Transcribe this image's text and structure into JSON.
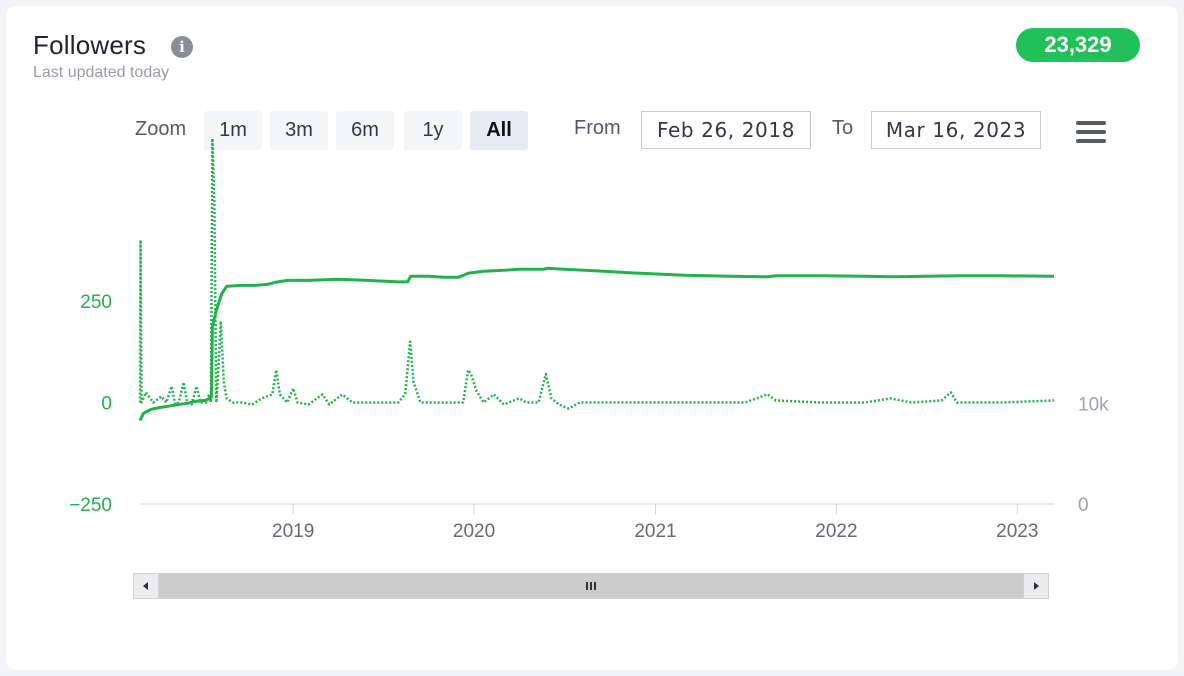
{
  "header": {
    "title": "Followers",
    "subtitle": "Last updated today",
    "badge": "23,329"
  },
  "toolbar": {
    "zoom_label": "Zoom",
    "zoom_buttons": [
      {
        "label": "1m",
        "active": false
      },
      {
        "label": "3m",
        "active": false
      },
      {
        "label": "6m",
        "active": false
      },
      {
        "label": "1y",
        "active": false
      },
      {
        "label": "All",
        "active": true
      }
    ],
    "from_label": "From",
    "from_value": "Feb 26, 2018",
    "to_label": "To",
    "to_value": "Mar 16, 2023"
  },
  "colors": {
    "series": "#22b24c",
    "axis_text": "#666a73",
    "right_axis_text": "#a0a4ab",
    "axis_line": "#ccd6eb"
  },
  "icons": {
    "info": "info-icon",
    "menu": "hamburger-menu-icon",
    "scroll_left": "arrow-left-icon",
    "scroll_right": "arrow-right-icon",
    "scroll_grip": "grip-icon"
  },
  "chart_data": {
    "type": "line",
    "x_range": [
      "2018-02-26",
      "2023-03-16"
    ],
    "x_ticks": [
      "2019",
      "2020",
      "2021",
      "2022",
      "2023"
    ],
    "left_axis": {
      "ticks": [
        "250",
        "0",
        "−250"
      ],
      "values": [
        250,
        0,
        -250
      ],
      "range": [
        -250,
        420
      ]
    },
    "right_axis": {
      "ticks": [
        "10k",
        "0"
      ],
      "values": [
        10000,
        0
      ],
      "range": [
        0,
        27000
      ]
    },
    "legend": "none",
    "grid": false,
    "series": [
      {
        "axis": "right",
        "style": "solid",
        "points": [
          [
            "2018-02-26",
            8300
          ],
          [
            "2018-03-05",
            9000
          ],
          [
            "2018-03-20",
            9400
          ],
          [
            "2018-04-10",
            9600
          ],
          [
            "2018-05-05",
            9800
          ],
          [
            "2018-06-01",
            10000
          ],
          [
            "2018-06-20",
            10200
          ],
          [
            "2018-07-10",
            10300
          ],
          [
            "2018-07-20",
            10600
          ],
          [
            "2018-07-22",
            17600
          ],
          [
            "2018-07-30",
            19200
          ],
          [
            "2018-08-10",
            20900
          ],
          [
            "2018-08-20",
            21600
          ],
          [
            "2018-09-15",
            21700
          ],
          [
            "2018-10-15",
            21700
          ],
          [
            "2018-11-10",
            21800
          ],
          [
            "2018-11-25",
            22000
          ],
          [
            "2018-12-20",
            22200
          ],
          [
            "2019-02-01",
            22200
          ],
          [
            "2019-04-01",
            22300
          ],
          [
            "2019-06-01",
            22200
          ],
          [
            "2019-08-01",
            22050
          ],
          [
            "2019-08-20",
            22050
          ],
          [
            "2019-08-26",
            22600
          ],
          [
            "2019-10-01",
            22600
          ],
          [
            "2019-11-01",
            22500
          ],
          [
            "2019-12-01",
            22500
          ],
          [
            "2019-12-20",
            22900
          ],
          [
            "2020-01-20",
            23100
          ],
          [
            "2020-03-01",
            23200
          ],
          [
            "2020-04-01",
            23300
          ],
          [
            "2020-05-20",
            23300
          ],
          [
            "2020-05-28",
            23400
          ],
          [
            "2020-07-01",
            23300
          ],
          [
            "2020-09-01",
            23150
          ],
          [
            "2020-12-01",
            22900
          ],
          [
            "2021-03-01",
            22700
          ],
          [
            "2021-06-01",
            22600
          ],
          [
            "2021-08-15",
            22550
          ],
          [
            "2021-09-01",
            22650
          ],
          [
            "2021-12-01",
            22650
          ],
          [
            "2022-03-01",
            22600
          ],
          [
            "2022-05-01",
            22550
          ],
          [
            "2022-07-01",
            22600
          ],
          [
            "2022-09-01",
            22650
          ],
          [
            "2022-12-01",
            22650
          ],
          [
            "2023-03-16",
            22600
          ]
        ]
      },
      {
        "axis": "left",
        "style": "dotted",
        "points": [
          [
            "2018-02-26",
            0
          ],
          [
            "2018-02-27",
            400
          ],
          [
            "2018-03-01",
            0
          ],
          [
            "2018-03-10",
            25
          ],
          [
            "2018-03-25",
            0
          ],
          [
            "2018-04-10",
            15
          ],
          [
            "2018-04-20",
            0
          ],
          [
            "2018-05-01",
            40
          ],
          [
            "2018-05-08",
            -5
          ],
          [
            "2018-05-15",
            0
          ],
          [
            "2018-05-25",
            50
          ],
          [
            "2018-06-01",
            0
          ],
          [
            "2018-06-10",
            -5
          ],
          [
            "2018-06-20",
            40
          ],
          [
            "2018-06-28",
            0
          ],
          [
            "2018-07-10",
            0
          ],
          [
            "2018-07-15",
            20
          ],
          [
            "2018-07-19",
            0
          ],
          [
            "2018-07-22",
            650
          ],
          [
            "2018-07-26",
            500
          ],
          [
            "2018-07-30",
            0
          ],
          [
            "2018-08-03",
            80
          ],
          [
            "2018-08-08",
            200
          ],
          [
            "2018-08-14",
            50
          ],
          [
            "2018-08-20",
            10
          ],
          [
            "2018-09-01",
            0
          ],
          [
            "2018-09-20",
            0
          ],
          [
            "2018-10-10",
            -5
          ],
          [
            "2018-10-30",
            10
          ],
          [
            "2018-11-20",
            20
          ],
          [
            "2018-11-28",
            80
          ],
          [
            "2018-12-05",
            20
          ],
          [
            "2018-12-20",
            0
          ],
          [
            "2019-01-01",
            35
          ],
          [
            "2019-01-10",
            0
          ],
          [
            "2019-02-01",
            -5
          ],
          [
            "2019-03-01",
            20
          ],
          [
            "2019-03-15",
            -5
          ],
          [
            "2019-04-10",
            20
          ],
          [
            "2019-05-01",
            0
          ],
          [
            "2019-06-01",
            0
          ],
          [
            "2019-07-01",
            0
          ],
          [
            "2019-08-01",
            0
          ],
          [
            "2019-08-15",
            20
          ],
          [
            "2019-08-25",
            150
          ],
          [
            "2019-09-01",
            50
          ],
          [
            "2019-09-15",
            0
          ],
          [
            "2019-10-15",
            0
          ],
          [
            "2019-11-15",
            0
          ],
          [
            "2019-12-10",
            0
          ],
          [
            "2019-12-20",
            80
          ],
          [
            "2019-12-26",
            70
          ],
          [
            "2020-01-05",
            30
          ],
          [
            "2020-01-20",
            0
          ],
          [
            "2020-02-10",
            20
          ],
          [
            "2020-03-01",
            -5
          ],
          [
            "2020-04-01",
            10
          ],
          [
            "2020-04-15",
            0
          ],
          [
            "2020-05-10",
            0
          ],
          [
            "2020-05-25",
            70
          ],
          [
            "2020-06-05",
            10
          ],
          [
            "2020-06-20",
            -5
          ],
          [
            "2020-07-10",
            -15
          ],
          [
            "2020-08-01",
            0
          ],
          [
            "2020-10-01",
            0
          ],
          [
            "2021-01-01",
            0
          ],
          [
            "2021-04-01",
            0
          ],
          [
            "2021-07-01",
            0
          ],
          [
            "2021-08-15",
            20
          ],
          [
            "2021-09-01",
            5
          ],
          [
            "2021-12-01",
            0
          ],
          [
            "2022-03-01",
            0
          ],
          [
            "2022-04-20",
            10
          ],
          [
            "2022-06-01",
            0
          ],
          [
            "2022-08-01",
            5
          ],
          [
            "2022-08-20",
            25
          ],
          [
            "2022-09-01",
            0
          ],
          [
            "2022-12-01",
            0
          ],
          [
            "2023-03-16",
            5
          ]
        ]
      }
    ]
  }
}
